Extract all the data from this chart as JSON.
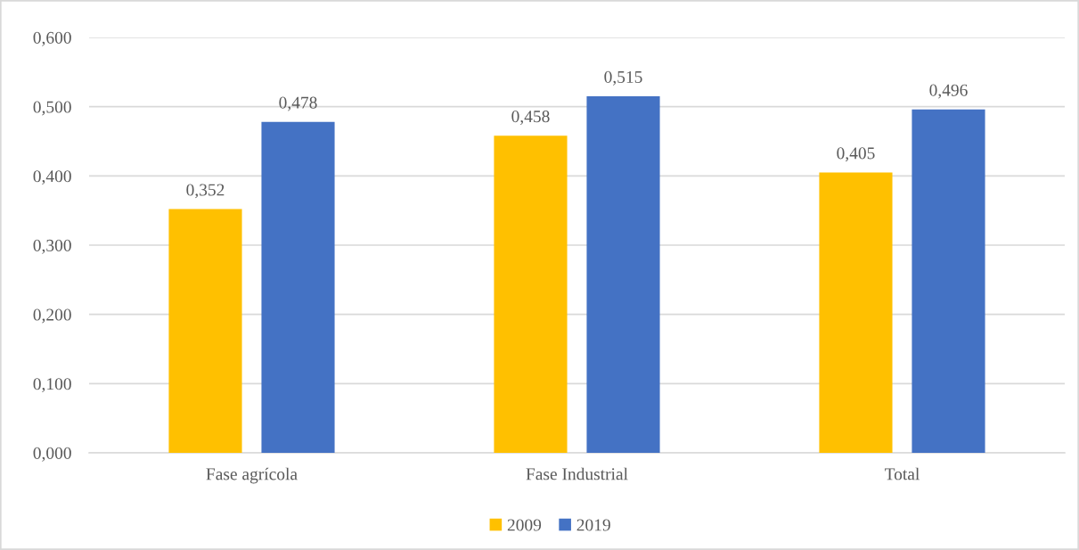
{
  "chart_data": {
    "type": "bar",
    "categories": [
      "Fase agrícola",
      "Fase Industrial",
      "Total"
    ],
    "series": [
      {
        "name": "2009",
        "color": "#ffc000",
        "values": [
          0.352,
          0.458,
          0.405
        ],
        "value_labels": [
          "0,352",
          "0,458",
          "0,405"
        ]
      },
      {
        "name": "2019",
        "color": "#4472c4",
        "values": [
          0.478,
          0.515,
          0.496
        ],
        "value_labels": [
          "0,478",
          "0,515",
          "0,496"
        ]
      }
    ],
    "ylim": [
      0,
      0.6
    ],
    "yticks": [
      {
        "value": 0,
        "label": "0,000"
      },
      {
        "value": 0.1,
        "label": "0,100"
      },
      {
        "value": 0.2,
        "label": "0,200"
      },
      {
        "value": 0.3,
        "label": "0,300"
      },
      {
        "value": 0.4,
        "label": "0,400"
      },
      {
        "value": 0.5,
        "label": "0,500"
      },
      {
        "value": 0.6,
        "label": "0,600"
      }
    ],
    "grid": "y",
    "legend": "bottom"
  }
}
